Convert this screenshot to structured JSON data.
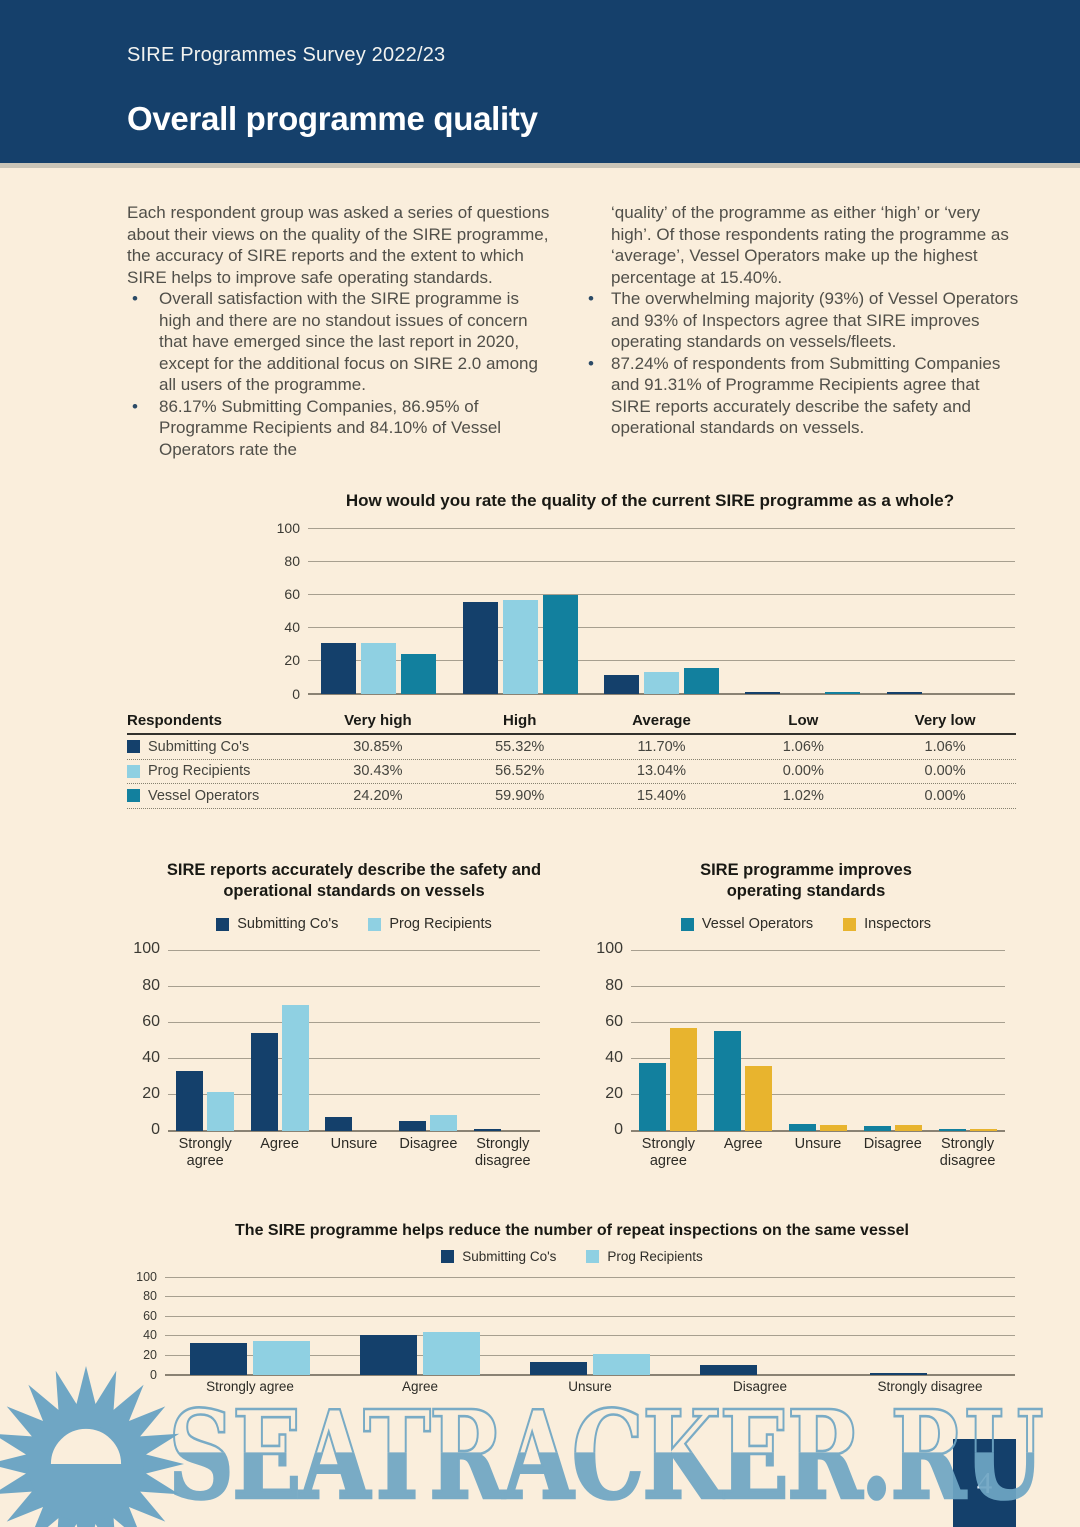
{
  "header": {
    "eyebrow": "SIRE Programmes Survey 2022/23",
    "title": "Overall programme quality"
  },
  "intro": {
    "left": {
      "paragraph": "Each respondent group was asked a series of questions about their views on the quality of the SIRE programme, the accuracy of SIRE reports and the extent to which SIRE helps to improve safe operating standards.",
      "bullets": [
        "Overall satisfaction with the SIRE programme is high and there are no standout issues of concern that have emerged since the last report in 2020, except for the additional focus on SIRE 2.0 among all users of the programme.",
        "86.17% Submitting Companies, 86.95% of Programme Recipients and 84.10% of Vessel Operators rate the"
      ]
    },
    "right": {
      "continuation": "‘quality’ of the programme as either ‘high’ or ‘very high’. Of those respondents rating the programme as ‘average’, Vessel Operators make up the highest percentage at 15.40%.",
      "bullets": [
        "The overwhelming majority (93%) of Vessel Operators and 93% of Inspectors agree that SIRE improves operating standards on vessels/fleets.",
        "87.24% of respondents from Submitting Companies and 91.31% of Programme Recipients agree that SIRE reports accurately describe the safety and operational standards on vessels."
      ]
    }
  },
  "colors": {
    "navy": "#14406b",
    "light_blue": "#8fd0e2",
    "teal": "#12809e",
    "gold": "#e8b42e",
    "cream": "#faeedc",
    "watermark_blue": "#6fa6c4"
  },
  "chart_data": [
    {
      "id": "quality",
      "type": "bar",
      "title": "How would you rate the quality of the current SIRE programme as a whole?",
      "categories": [
        "Very high",
        "High",
        "Average",
        "Low",
        "Very low"
      ],
      "series": [
        {
          "name": "Submitting Co's",
          "color": "#14406b",
          "values": [
            30.85,
            55.32,
            11.7,
            1.06,
            1.06
          ]
        },
        {
          "name": "Prog Recipients",
          "color": "#8fd0e2",
          "values": [
            30.43,
            56.52,
            13.04,
            0.0,
            0.0
          ]
        },
        {
          "name": "Vessel Operators",
          "color": "#12809e",
          "values": [
            24.2,
            59.9,
            15.4,
            1.02,
            0.0
          ]
        }
      ],
      "ylim": [
        0,
        100
      ],
      "yticks": [
        0,
        20,
        40,
        60,
        80,
        100
      ],
      "legend": false,
      "grid": true
    },
    {
      "id": "accuracy",
      "type": "bar",
      "title": [
        "SIRE reports accurately describe the safety and",
        "operational standards on vessels"
      ],
      "categories": [
        "Strongly agree",
        "Agree",
        "Unsure",
        "Disagree",
        "Strongly disagree"
      ],
      "series": [
        {
          "name": "Submitting Co's",
          "color": "#14406b",
          "values": [
            33,
            54,
            7.5,
            5.5,
            1
          ]
        },
        {
          "name": "Prog Recipients",
          "color": "#8fd0e2",
          "values": [
            21.7,
            69.6,
            0,
            8.7,
            0
          ]
        }
      ],
      "ylim": [
        0,
        100
      ],
      "yticks": [
        0,
        20,
        40,
        60,
        80,
        100
      ],
      "legend": true,
      "grid": true
    },
    {
      "id": "improves",
      "type": "bar",
      "title": [
        "SIRE programme improves",
        "operating standards"
      ],
      "categories": [
        "Strongly agree",
        "Agree",
        "Unsure",
        "Disagree",
        "Strongly disagree"
      ],
      "series": [
        {
          "name": "Vessel Operators",
          "color": "#12809e",
          "values": [
            37.5,
            55.5,
            4,
            3,
            0.5
          ]
        },
        {
          "name": "Inspectors",
          "color": "#e8b42e",
          "values": [
            57,
            36,
            3.5,
            3.5,
            0.5
          ]
        }
      ],
      "ylim": [
        0,
        100
      ],
      "yticks": [
        0,
        20,
        40,
        60,
        80,
        100
      ],
      "legend": true,
      "grid": true
    },
    {
      "id": "repeat",
      "type": "bar",
      "title": "The SIRE programme helps reduce the number of repeat inspections on the same vessel",
      "categories": [
        "Strongly agree",
        "Agree",
        "Unsure",
        "Disagree",
        "Strongly disagree"
      ],
      "series": [
        {
          "name": "Submitting Co's",
          "color": "#14406b",
          "values": [
            33,
            41,
            13,
            10.5,
            2
          ]
        },
        {
          "name": "Prog Recipients",
          "color": "#8fd0e2",
          "values": [
            34.5,
            43.5,
            21.5,
            0,
            0
          ]
        }
      ],
      "ylim": [
        0,
        100
      ],
      "yticks": [
        0,
        20,
        40,
        60,
        80,
        100
      ],
      "legend": true,
      "grid": true
    }
  ],
  "table": {
    "headers": [
      "Respondents",
      "Very high",
      "High",
      "Average",
      "Low",
      "Very low"
    ],
    "rows": [
      {
        "label": "Submitting Co's",
        "color": "#14406b",
        "values": [
          "30.85%",
          "55.32%",
          "11.70%",
          "1.06%",
          "1.06%"
        ]
      },
      {
        "label": "Prog Recipients",
        "color": "#8fd0e2",
        "values": [
          "30.43%",
          "56.52%",
          "13.04%",
          "0.00%",
          "0.00%"
        ]
      },
      {
        "label": "Vessel Operators",
        "color": "#12809e",
        "values": [
          "24.20%",
          "59.90%",
          "15.40%",
          "1.02%",
          "0.00%"
        ]
      }
    ]
  },
  "watermark": {
    "text": "SEATRACKER.RU"
  },
  "page_number": "4"
}
